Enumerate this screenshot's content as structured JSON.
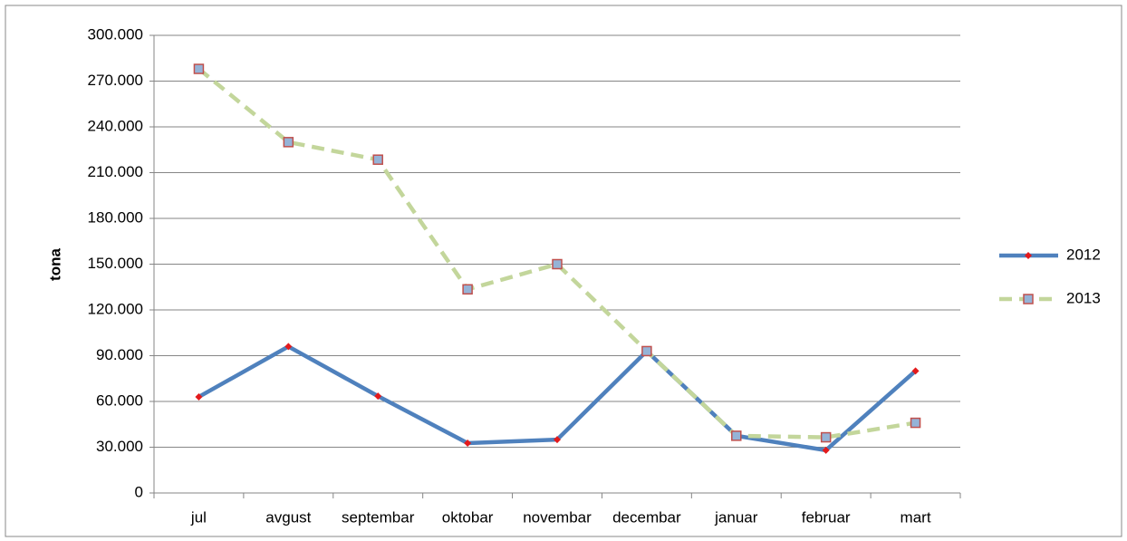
{
  "chart_data": {
    "type": "line",
    "y_label": "tona",
    "categories": [
      "jul",
      "avgust",
      "septembar",
      "oktobar",
      "novembar",
      "decembar",
      "januar",
      "februar",
      "mart"
    ],
    "series": [
      {
        "name": "2012",
        "color": "#4f81bd",
        "marker_color": "#e31a1c",
        "dashed": false,
        "values": [
          63000,
          96000,
          63500,
          32700,
          35000,
          93000,
          37500,
          28000,
          80000
        ]
      },
      {
        "name": "2013",
        "color": "#c3d69b",
        "marker_color": "#95b3d7",
        "dashed": true,
        "values": [
          278000,
          230000,
          218500,
          133500,
          150000,
          93000,
          37500,
          36500,
          46000
        ]
      }
    ],
    "ylim": [
      0,
      300000
    ],
    "yticks": [
      0,
      {
        "value": 30000,
        "label": "30.000"
      },
      {
        "value": 60000,
        "label": "60.000"
      },
      {
        "value": 90000,
        "label": "90.000"
      },
      {
        "value": 120000,
        "label": "120.000"
      },
      {
        "value": 150000,
        "label": "150.000"
      },
      {
        "value": 180000,
        "label": "180.000"
      },
      {
        "value": 210000,
        "label": "210.000"
      },
      {
        "value": 240000,
        "label": "240.000"
      },
      {
        "value": 270000,
        "label": "270.000"
      },
      {
        "value": 300000,
        "label": "300.000"
      }
    ],
    "grid": true,
    "legend": "right"
  }
}
